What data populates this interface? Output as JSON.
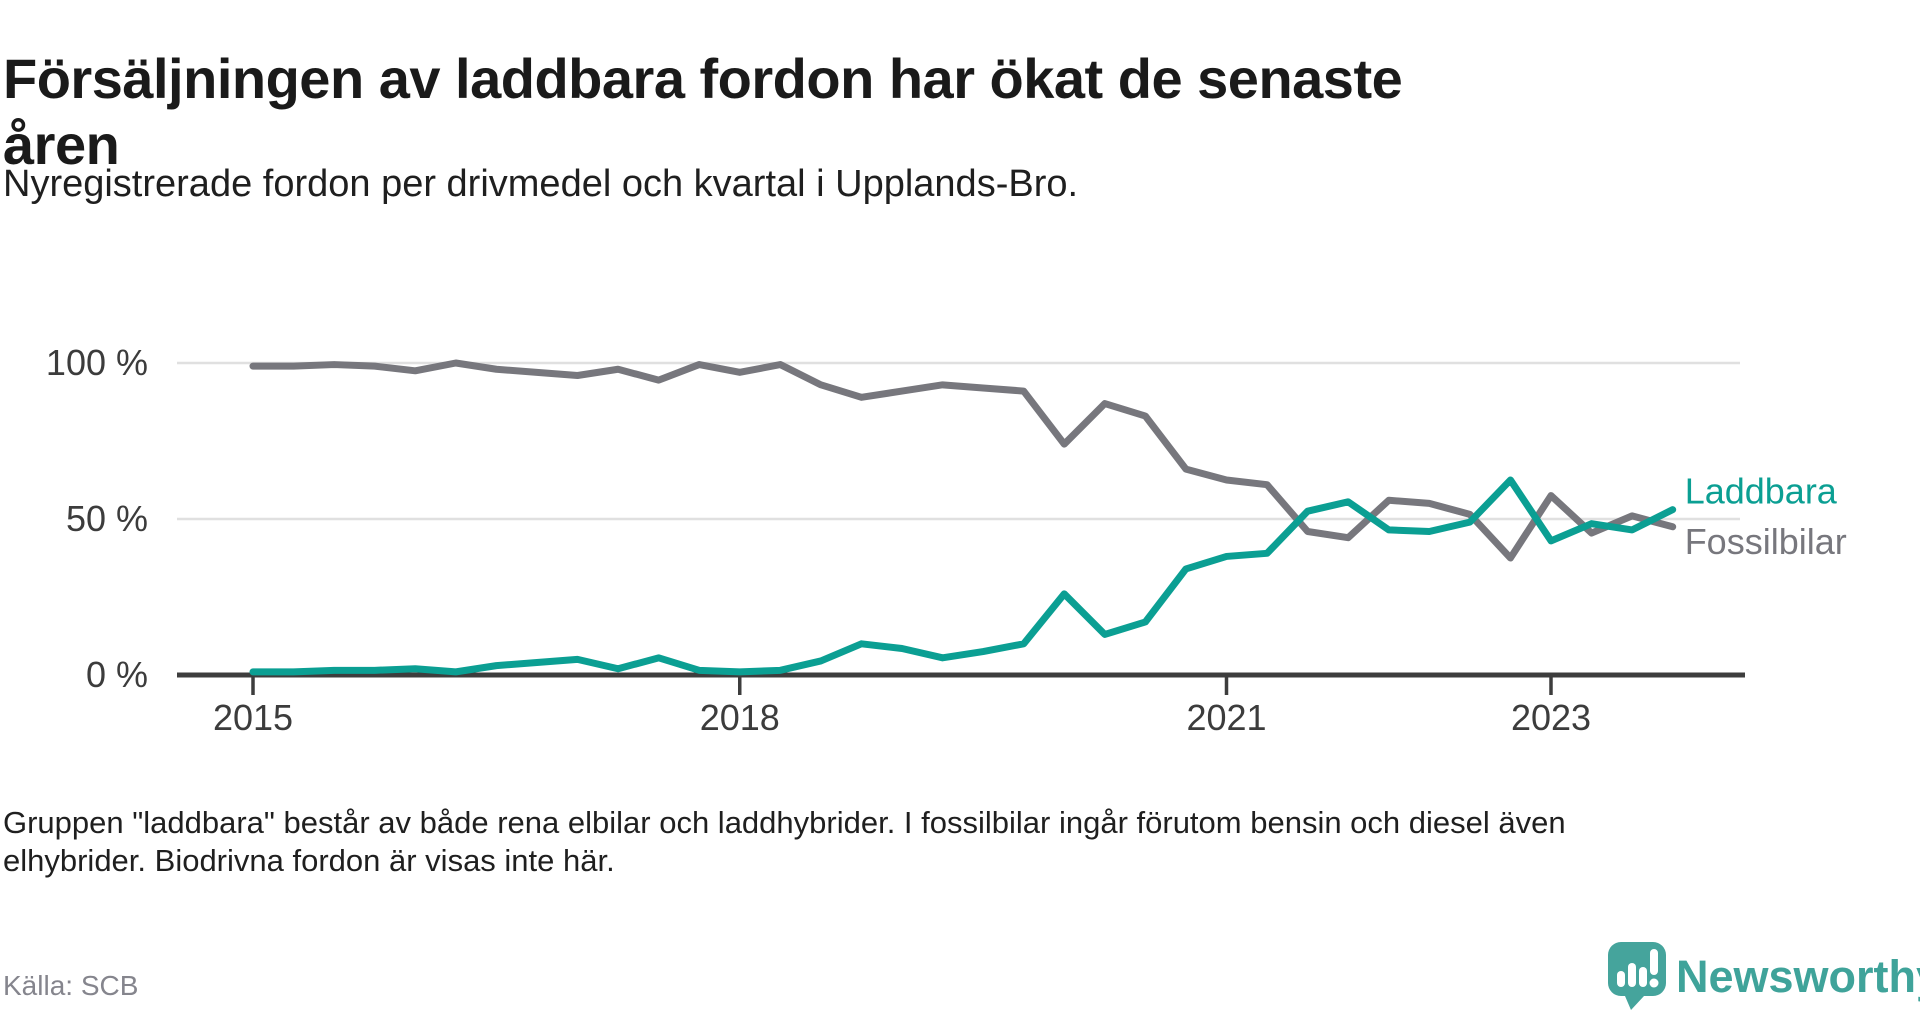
{
  "header": {
    "title_lines": [
      "Försäljningen av laddbara fordon har ökat de senaste",
      "åren"
    ],
    "subtitle": "Nyregistrerade fordon per drivmedel och kvartal i Upplands-Bro."
  },
  "chart_data": {
    "type": "line",
    "title": "Försäljningen av laddbara fordon har ökat de senaste åren",
    "subtitle": "Nyregistrerade fordon per drivmedel och kvartal i Upplands-Bro.",
    "x_unit": "quarter",
    "quarters": [
      "2015 Q1",
      "2015 Q2",
      "2015 Q3",
      "2015 Q4",
      "2016 Q1",
      "2016 Q2",
      "2016 Q3",
      "2016 Q4",
      "2017 Q1",
      "2017 Q2",
      "2017 Q3",
      "2017 Q4",
      "2018 Q1",
      "2018 Q2",
      "2018 Q3",
      "2018 Q4",
      "2019 Q1",
      "2019 Q2",
      "2019 Q3",
      "2019 Q4",
      "2020 Q1",
      "2020 Q2",
      "2020 Q3",
      "2020 Q4",
      "2021 Q1",
      "2021 Q2",
      "2021 Q3",
      "2021 Q4",
      "2022 Q1",
      "2022 Q2",
      "2022 Q3",
      "2022 Q4",
      "2023 Q1",
      "2023 Q2",
      "2023 Q3",
      "2023 Q4"
    ],
    "series": [
      {
        "name": "Fossilbilar",
        "color": "#77777d",
        "values": [
          99,
          99,
          99.5,
          99,
          97.5,
          100,
          98,
          97,
          96,
          98,
          94.5,
          99.5,
          97,
          99.5,
          93,
          89,
          91,
          93,
          92,
          91,
          74,
          87,
          83,
          66,
          62.5,
          61,
          46,
          44,
          56,
          55,
          51.5,
          37.5,
          57.5,
          45.5,
          51,
          47.5
        ]
      },
      {
        "name": "Laddbara",
        "color": "#0b9f93",
        "values": [
          1,
          1,
          1.5,
          1.5,
          2,
          1,
          3,
          4,
          5,
          2,
          5.5,
          1.5,
          1,
          1.5,
          4.5,
          10,
          8.5,
          5.5,
          7.5,
          10,
          26,
          13,
          17,
          34,
          38,
          39,
          52.5,
          55.5,
          46.5,
          46,
          49,
          62.5,
          43,
          48.5,
          46.5,
          53
        ]
      }
    ],
    "ylim": [
      0,
      100
    ],
    "y_ticks": [
      {
        "value": 0,
        "label": "0 %"
      },
      {
        "value": 50,
        "label": "50 %"
      },
      {
        "value": 100,
        "label": "100 %"
      }
    ],
    "x_ticks": [
      {
        "index": 0,
        "label": "2015"
      },
      {
        "index": 12,
        "label": "2018"
      },
      {
        "index": 24,
        "label": "2021"
      },
      {
        "index": 32,
        "label": "2023"
      }
    ],
    "grid": "horizontal",
    "legend_position": "line-end-right",
    "legend": [
      {
        "label": "Laddbara",
        "color": "#0b9f93"
      },
      {
        "label": "Fossilbilar",
        "color": "#77777d"
      }
    ]
  },
  "footer": {
    "note_lines": [
      "Gruppen \"laddbara\" består av både rena elbilar och laddhybrider. I fossilbilar ingår förutom bensin och diesel även",
      "elhybrider. Biodrivna fordon är visas inte här."
    ],
    "source": "Källa: SCB"
  },
  "logo": {
    "text": "Newsworthy",
    "icon": "speech-bubble-bar-chart-icon",
    "icon_color": "#45a49c",
    "text_color": "#3fa39a"
  }
}
